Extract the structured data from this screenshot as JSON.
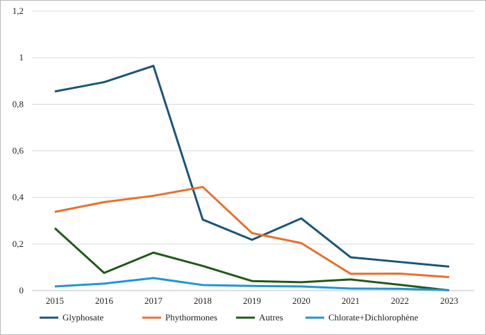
{
  "chart_data": {
    "type": "line",
    "title": "",
    "xlabel": "",
    "ylabel": "",
    "categories": [
      "2015",
      "2016",
      "2017",
      "2018",
      "2019",
      "2020",
      "2021",
      "2022",
      "2023"
    ],
    "y_tick_labels": [
      "0",
      "0,2",
      "0,4",
      "0,6",
      "0,8",
      "1",
      "1,2"
    ],
    "ylim": [
      0,
      1.2
    ],
    "grid": true,
    "legend_position": "bottom",
    "series": [
      {
        "name": "Glyphosate",
        "color": "#1b5478",
        "values": [
          0.855,
          0.895,
          0.965,
          0.305,
          0.218,
          0.31,
          0.143,
          0.123,
          0.103
        ]
      },
      {
        "name": "Phythormones",
        "color": "#e8702d",
        "values": [
          0.338,
          0.38,
          0.407,
          0.445,
          0.247,
          0.204,
          0.072,
          0.073,
          0.058
        ]
      },
      {
        "name": "Autres",
        "color": "#1f5a17",
        "values": [
          0.268,
          0.076,
          0.163,
          0.106,
          0.041,
          0.036,
          0.048,
          0.025,
          0.001
        ]
      },
      {
        "name": "Chlorate+Dichlorophène",
        "color": "#1f96d2",
        "values": [
          0.018,
          0.03,
          0.054,
          0.024,
          0.02,
          0.018,
          0.009,
          0.008,
          0.002
        ]
      }
    ]
  }
}
